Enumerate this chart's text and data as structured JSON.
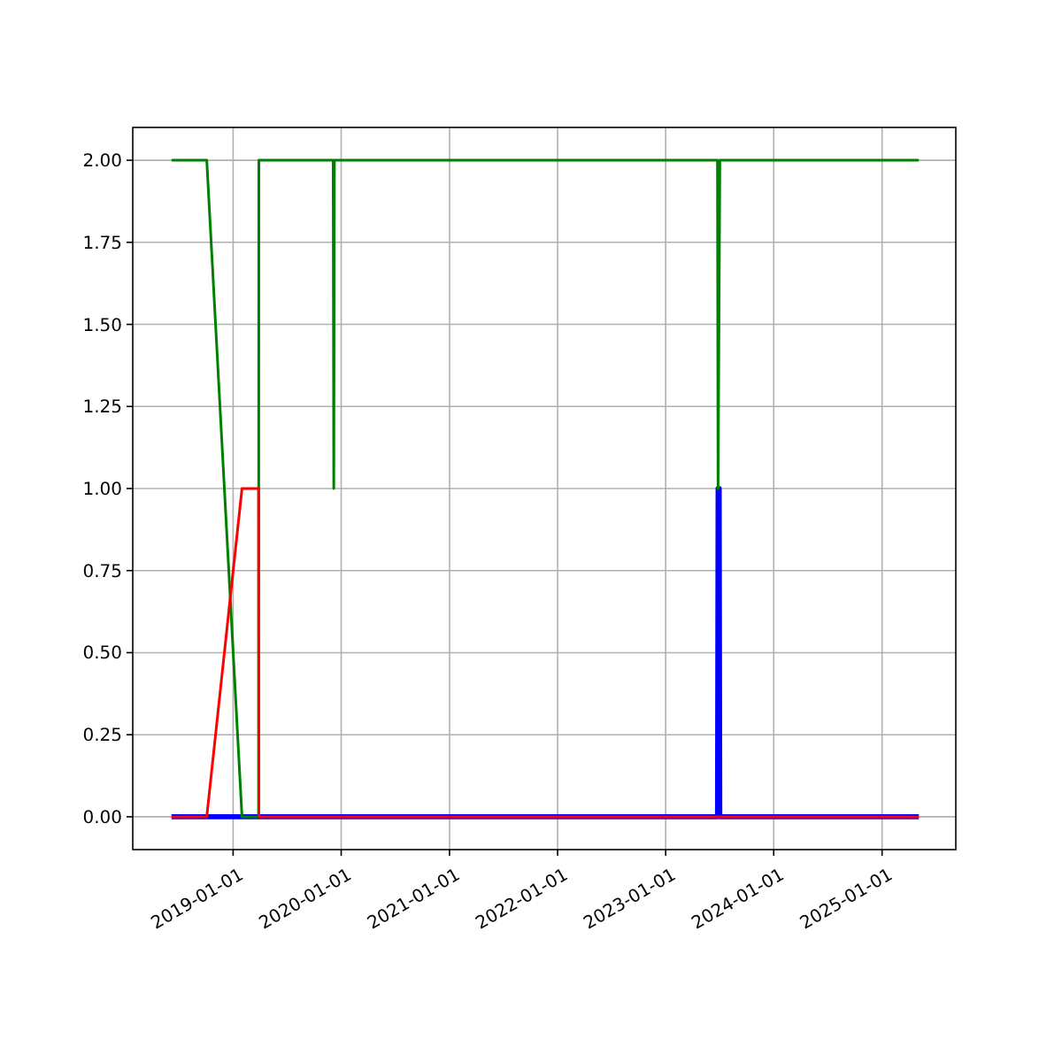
{
  "chart_data": {
    "type": "line",
    "xlim": [
      "2018-01-27",
      "2025-09-07"
    ],
    "ylim": [
      -0.1,
      2.1
    ],
    "xticks": [
      "2019-01-01",
      "2020-01-01",
      "2021-01-01",
      "2022-01-01",
      "2023-01-01",
      "2024-01-01",
      "2025-01-01"
    ],
    "yticks": [
      {
        "value": 0,
        "label": "0.00"
      },
      {
        "value": 0.25,
        "label": "0.25"
      },
      {
        "value": 0.5,
        "label": "0.50"
      },
      {
        "value": 0.75,
        "label": "0.75"
      },
      {
        "value": 1,
        "label": "1.00"
      },
      {
        "value": 1.25,
        "label": "1.25"
      },
      {
        "value": 1.5,
        "label": "1.50"
      },
      {
        "value": 1.75,
        "label": "1.75"
      },
      {
        "value": 2,
        "label": "2.00"
      }
    ],
    "grid": true,
    "line_style": "solid",
    "series": [
      {
        "color": "#0000ff",
        "x": [
          "2018-06-07",
          "2023-06-25",
          "2023-06-27",
          "2023-07-01",
          "2023-07-03",
          "2025-05-05"
        ],
        "values": [
          0,
          0,
          1,
          1,
          0,
          0
        ]
      },
      {
        "color": "#008000",
        "x": [
          "2018-06-07",
          "2018-10-04",
          "2019-01-31",
          "2019-03-28",
          "2019-03-29",
          "2019-12-05",
          "2019-12-07",
          "2019-12-09",
          "2023-06-25",
          "2023-06-27",
          "2023-07-03",
          "2025-05-05"
        ],
        "values": [
          2,
          2,
          0,
          0,
          2,
          2,
          1,
          2,
          2,
          1,
          2,
          2
        ]
      },
      {
        "color": "#ff0000",
        "x": [
          "2018-06-07",
          "2018-10-04",
          "2019-01-31",
          "2019-03-28",
          "2019-03-29",
          "2025-05-05"
        ],
        "values": [
          0,
          0,
          1,
          1,
          0,
          0
        ]
      }
    ]
  }
}
